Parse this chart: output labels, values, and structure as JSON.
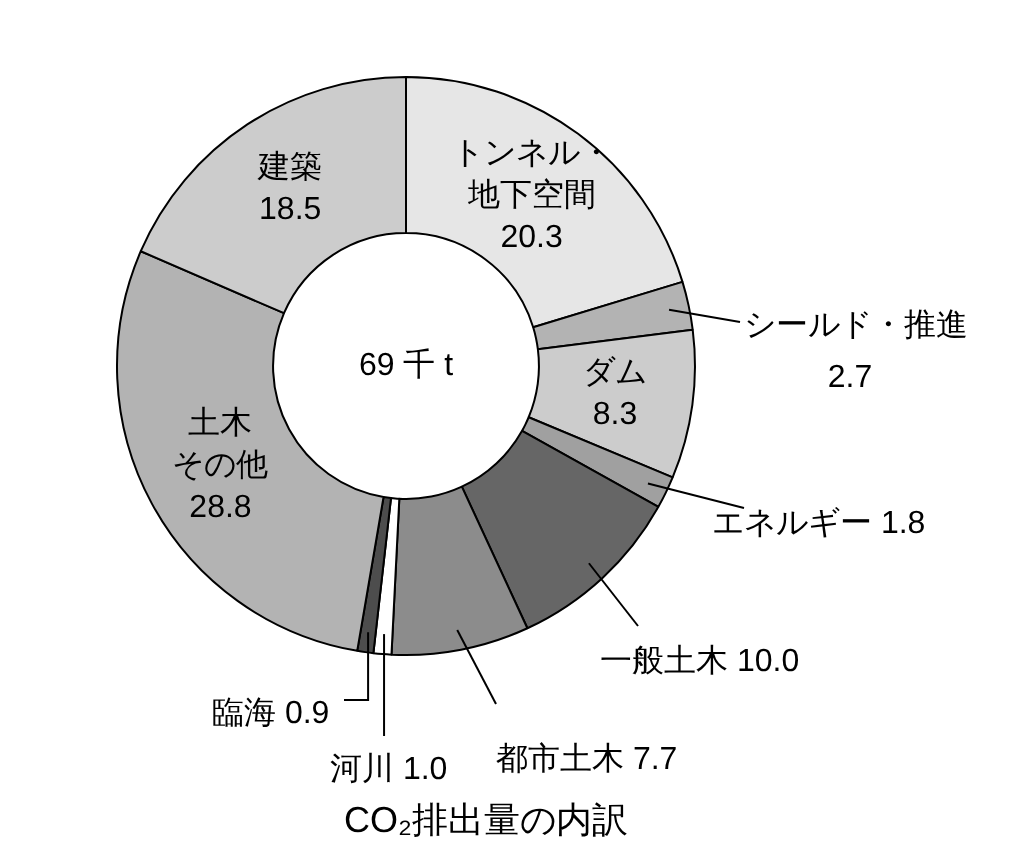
{
  "chart_data": {
    "type": "donut",
    "title": "CO₂排出量の内訳",
    "categories": [
      "トンネル・地下空間",
      "シールド・推進",
      "ダム",
      "エネルギー",
      "一般土木",
      "都市土木",
      "河川",
      "臨海",
      "土木その他",
      "建築"
    ],
    "values": [
      20.3,
      2.7,
      8.3,
      1.8,
      10.0,
      7.7,
      1.0,
      0.9,
      28.8,
      18.5
    ],
    "colors": [
      "#e6e6e6",
      "#b3b3b3",
      "#cccccc",
      "#a0a0a0",
      "#666666",
      "#8c8c8c",
      "#ffffff",
      "#4d4d4d",
      "#b3b3b3",
      "#cccccc"
    ],
    "value_labels": [
      "20.3",
      "2.7",
      "8.3",
      "1.8",
      "10.0",
      "7.7",
      "1.0",
      "0.9",
      "28.8",
      "18.5"
    ],
    "annotations": [
      "69 千 t"
    ]
  }
}
